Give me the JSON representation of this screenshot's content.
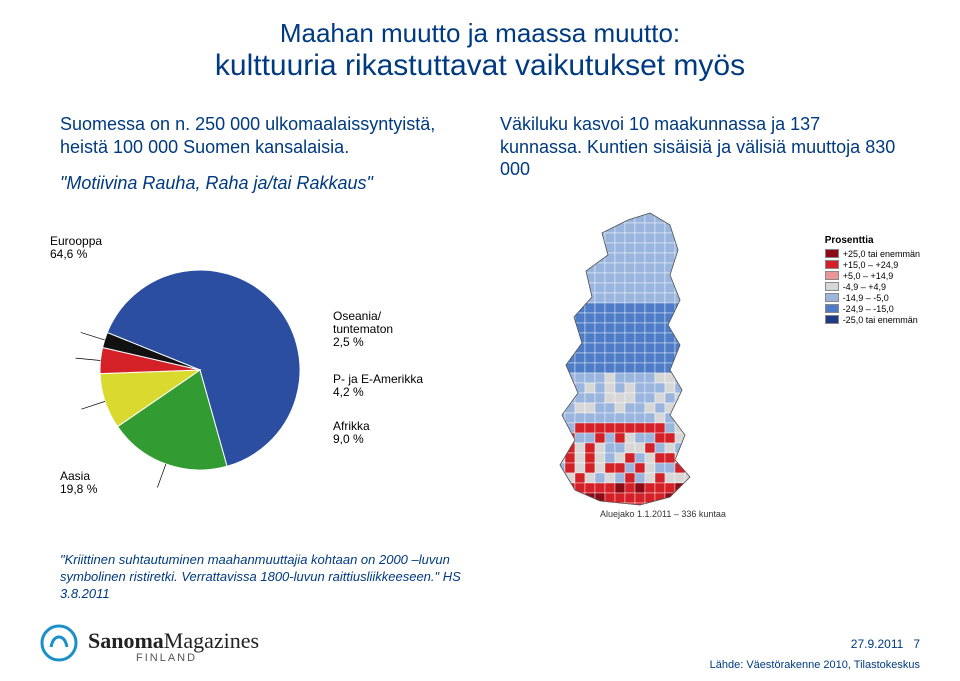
{
  "title": {
    "line1": "Maahan muutto ja maassa muutto:",
    "line2": "kulttuuria rikastuttavat vaikutukset myös"
  },
  "left_col": {
    "text": "Suomessa on n. 250 000 ulkomaalaissyntyistä, heistä 100 000 Suomen kansalaisia.",
    "quote": "\"Motiivina Rauha, Raha ja/tai Rakkaus\""
  },
  "right_col": {
    "text": "Väkiluku kasvoi 10 maakunnassa ja 137 kunnassa. Kuntien sisäisiä ja välisiä muuttoja 830 000"
  },
  "pie": {
    "slices": [
      {
        "label": "Eurooppa",
        "value": 64.6,
        "color": "#2b4ea0"
      },
      {
        "label": "Aasia",
        "value": 19.8,
        "color": "#329b31"
      },
      {
        "label": "Afrikka",
        "value": 9.0,
        "color": "#d9d930"
      },
      {
        "label": "P- ja E-Amerikka",
        "value": 4.2,
        "color": "#d42027"
      },
      {
        "label": "Oseania/ tuntematon",
        "value": 2.5,
        "color": "#111111"
      }
    ],
    "labels": {
      "eurooppa": "Eurooppa\n64,6 %",
      "aasia": "Aasia\n19,8 %",
      "afrikka": "Afrikka\n9,0 %",
      "amerikka": "P- ja E-Amerikka\n4,2 %",
      "oseania": "Oseania/\ntuntematon\n2,5 %"
    }
  },
  "map": {
    "caption": "Aluejako 1.1.2011 – 336 kuntaa",
    "legend_title": "Prosenttia",
    "legend": [
      {
        "label": "+25,0 tai enemmän",
        "color": "#8b0c16"
      },
      {
        "label": "+15,0 – +24,9",
        "color": "#d42027"
      },
      {
        "label": "+5,0 – +14,9",
        "color": "#e99696"
      },
      {
        "label": "-4,9 – +4,9",
        "color": "#d7d7d7"
      },
      {
        "label": "-14,9 – -5,0",
        "color": "#9bb6de"
      },
      {
        "label": "-24,9 – -15,0",
        "color": "#4e7cc6"
      },
      {
        "label": "-25,0 tai enemmän",
        "color": "#1d3c84"
      }
    ],
    "region_colors": {
      "lapland": "#9bb6de",
      "north": "#4e7cc6",
      "central": "#9bb6de",
      "southwest": "#d7d7d7",
      "south": "#d42027",
      "helsinki": "#8b0c16"
    }
  },
  "bottom_quote": "\"Kriittinen suhtautuminen maahanmuuttajia kohtaan on 2000 –luvun symbolinen ristiretki. Verrattavissa 1800-luvun raittiusliikkeeseen.\" HS 3.8.2011",
  "logo": {
    "brand1": "Sanoma",
    "brand2": "Magazines",
    "sub": "FINLAND"
  },
  "footer": {
    "date": "27.9.2011",
    "page": "7",
    "source": "Lähde: Väestörakenne 2010, Tilastokeskus"
  }
}
